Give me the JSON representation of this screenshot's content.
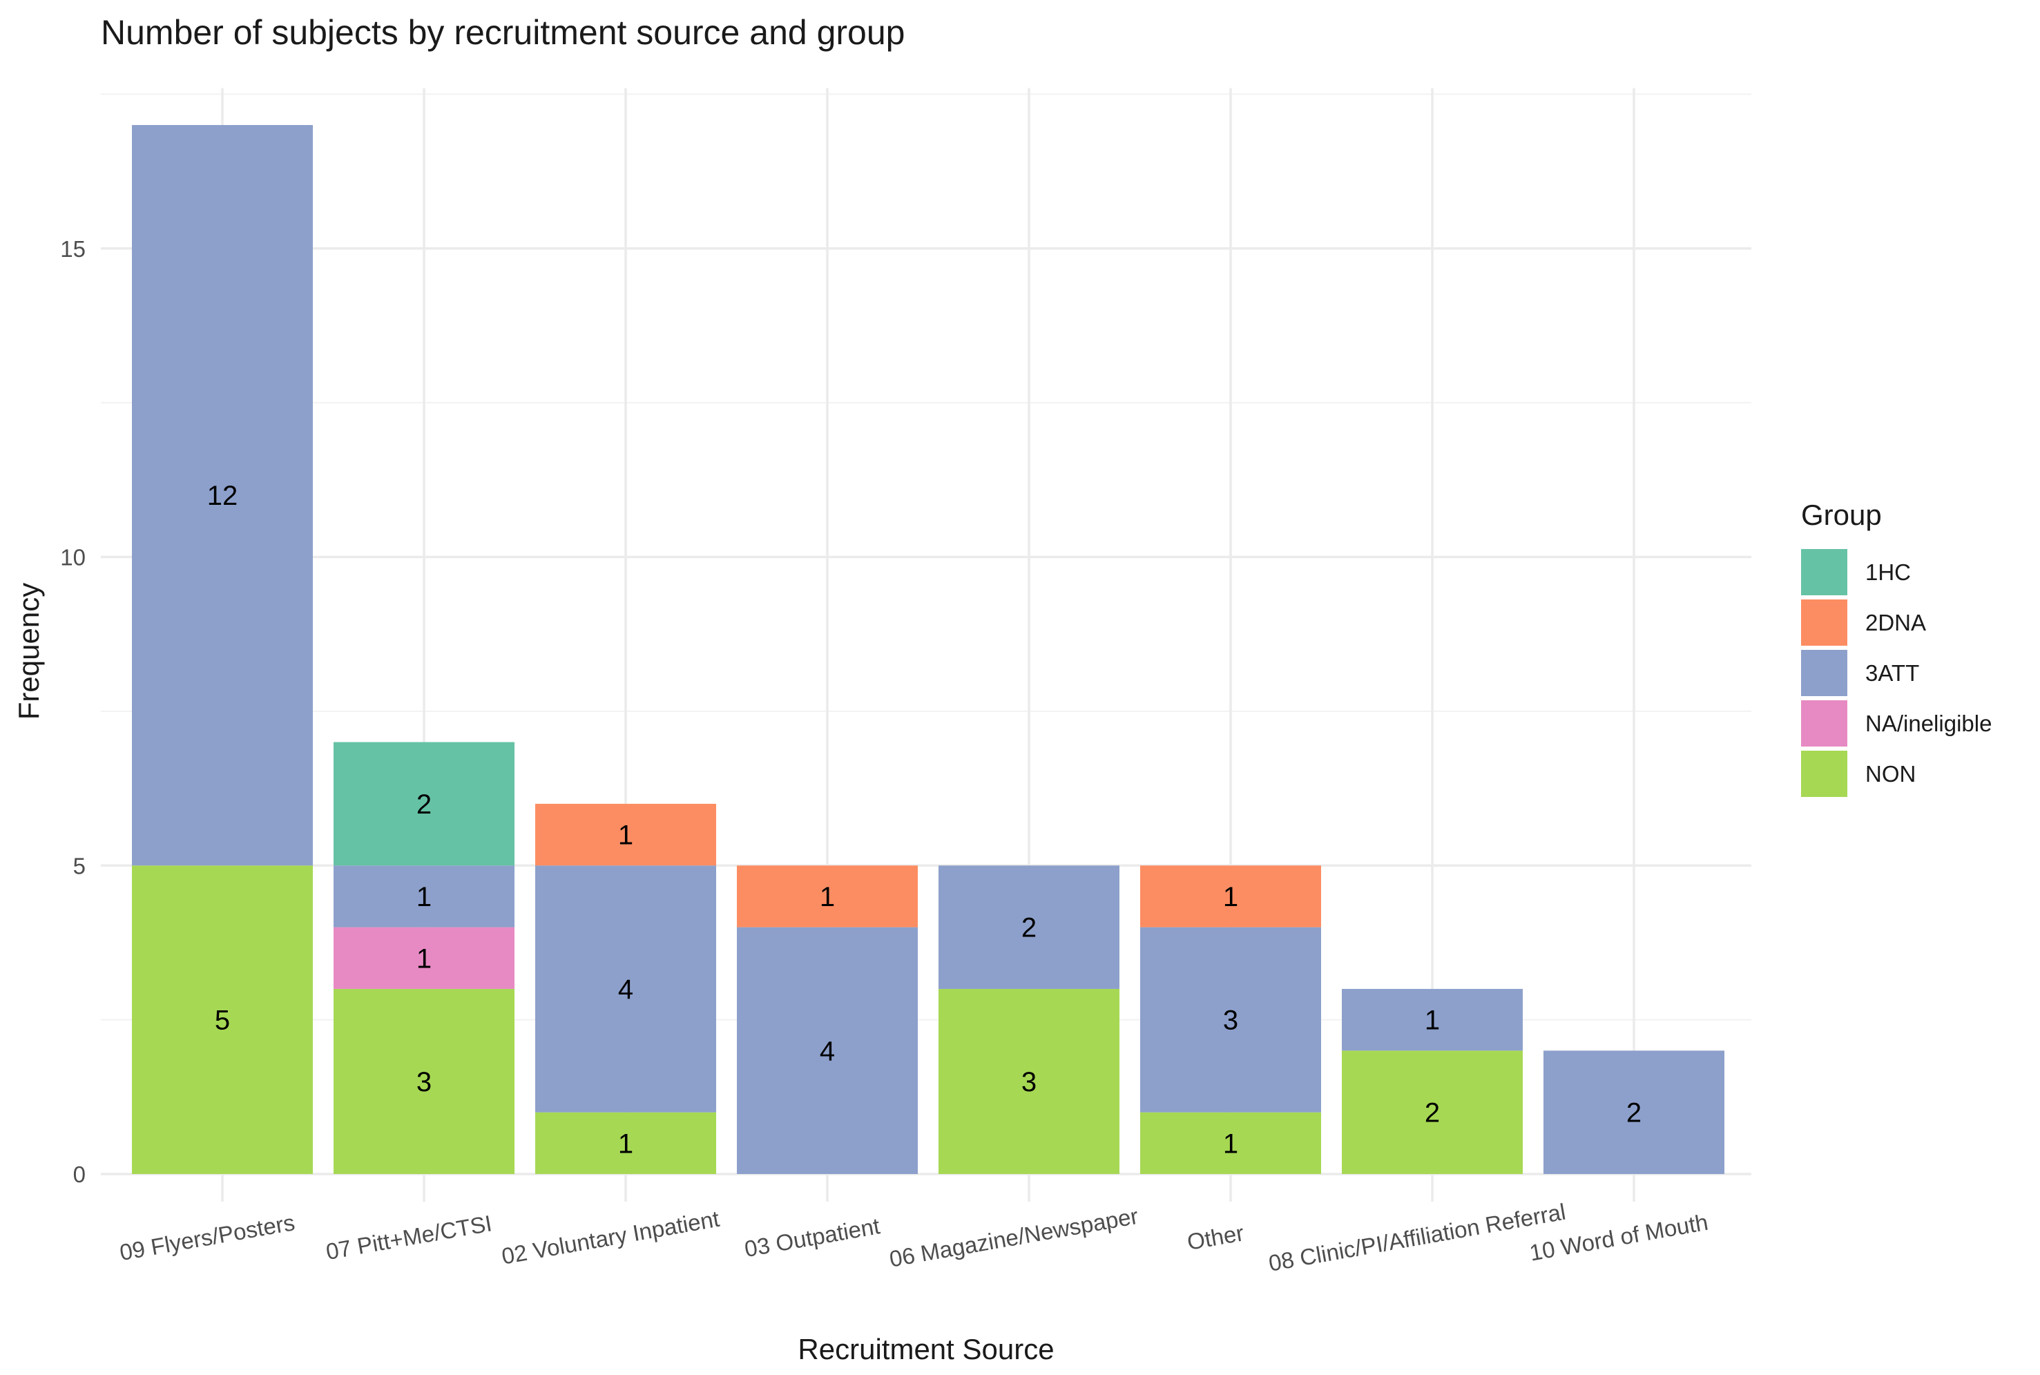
{
  "chart_data": {
    "type": "bar",
    "stacked": true,
    "title": "Number of subjects by recruitment source and group",
    "xlabel": "Recruitment Source",
    "ylabel": "Frequency",
    "ylim": [
      0,
      17.6
    ],
    "yticks": [
      0,
      5,
      10,
      15
    ],
    "grid": true,
    "legend": {
      "title": "Group",
      "placement": "right"
    },
    "categories": [
      "09 Flyers/Posters",
      "07 Pitt+Me/CTSI",
      "02 Voluntary Inpatient",
      "03 Outpatient",
      "06 Magazine/Newspaper",
      "Other",
      "08 Clinic/PI/Affiliation Referral",
      "10 Word of Mouth"
    ],
    "series": [
      {
        "name": "1HC",
        "color": "#66c2a5",
        "values": [
          0,
          2,
          0,
          0,
          0,
          0,
          0,
          0
        ]
      },
      {
        "name": "2DNA",
        "color": "#fc8d62",
        "values": [
          0,
          0,
          1,
          1,
          0,
          1,
          0,
          0
        ]
      },
      {
        "name": "3ATT",
        "color": "#8da0cb",
        "values": [
          12,
          1,
          4,
          4,
          2,
          3,
          1,
          2
        ]
      },
      {
        "name": "NA/ineligible",
        "color": "#e78ac3",
        "values": [
          0,
          1,
          0,
          0,
          0,
          0,
          0,
          0
        ]
      },
      {
        "name": "NON",
        "color": "#a6d854",
        "values": [
          5,
          3,
          1,
          0,
          3,
          1,
          2,
          0
        ]
      }
    ]
  }
}
